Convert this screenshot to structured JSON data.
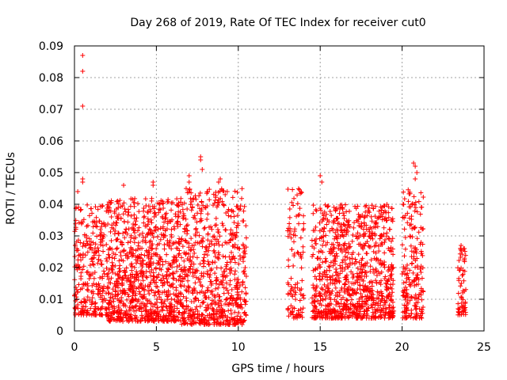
{
  "chart_data": {
    "type": "scatter",
    "title": "Day 268 of 2019, Rate Of TEC Index for receiver cut0",
    "xlabel": "GPS time / hours",
    "ylabel": "ROTI / TECUs",
    "xlim": [
      0,
      25
    ],
    "ylim": [
      0,
      0.09
    ],
    "xticks": [
      0,
      5,
      10,
      15,
      20,
      25
    ],
    "xtick_labels": [
      "0",
      "5",
      "10",
      "15",
      "20",
      "25"
    ],
    "yticks": [
      0,
      0.01,
      0.02,
      0.03,
      0.04,
      0.05,
      0.06,
      0.07,
      0.08,
      0.09
    ],
    "ytick_labels": [
      "0",
      "0.01",
      "0.02",
      "0.03",
      "0.04",
      "0.05",
      "0.06",
      "0.07",
      "0.08",
      "0.09"
    ],
    "grid": true,
    "marker": "+",
    "marker_color": "#ff0000",
    "clusters": [
      {
        "x_start": 0.0,
        "x_end": 2.0,
        "y_min": 0.005,
        "y_max": 0.04,
        "points": 280
      },
      {
        "x_start": 2.0,
        "x_end": 6.5,
        "y_min": 0.003,
        "y_max": 0.042,
        "points": 900
      },
      {
        "x_start": 6.5,
        "x_end": 10.5,
        "y_min": 0.002,
        "y_max": 0.045,
        "points": 700
      },
      {
        "x_start": 13.0,
        "x_end": 14.0,
        "y_min": 0.004,
        "y_max": 0.045,
        "points": 110
      },
      {
        "x_start": 14.5,
        "x_end": 19.5,
        "y_min": 0.004,
        "y_max": 0.04,
        "points": 950
      },
      {
        "x_start": 20.0,
        "x_end": 21.3,
        "y_min": 0.004,
        "y_max": 0.045,
        "points": 200
      },
      {
        "x_start": 23.4,
        "x_end": 23.9,
        "y_min": 0.005,
        "y_max": 0.027,
        "points": 60
      }
    ],
    "notable_points": [
      {
        "x": 0.5,
        "y": 0.087
      },
      {
        "x": 0.5,
        "y": 0.082
      },
      {
        "x": 0.5,
        "y": 0.071
      },
      {
        "x": 0.5,
        "y": 0.048
      },
      {
        "x": 0.5,
        "y": 0.047
      },
      {
        "x": 0.2,
        "y": 0.044
      },
      {
        "x": 7.7,
        "y": 0.055
      },
      {
        "x": 7.7,
        "y": 0.054
      },
      {
        "x": 7.8,
        "y": 0.051
      },
      {
        "x": 7.0,
        "y": 0.049
      },
      {
        "x": 7.0,
        "y": 0.047
      },
      {
        "x": 4.8,
        "y": 0.047
      },
      {
        "x": 4.8,
        "y": 0.046
      },
      {
        "x": 3.0,
        "y": 0.046
      },
      {
        "x": 8.9,
        "y": 0.048
      },
      {
        "x": 8.8,
        "y": 0.047
      },
      {
        "x": 15.0,
        "y": 0.049
      },
      {
        "x": 15.1,
        "y": 0.047
      },
      {
        "x": 20.7,
        "y": 0.053
      },
      {
        "x": 20.8,
        "y": 0.052
      },
      {
        "x": 20.9,
        "y": 0.05
      },
      {
        "x": 20.8,
        "y": 0.048
      },
      {
        "x": 23.8,
        "y": 0.026
      },
      {
        "x": 23.6,
        "y": 0.027
      }
    ]
  }
}
